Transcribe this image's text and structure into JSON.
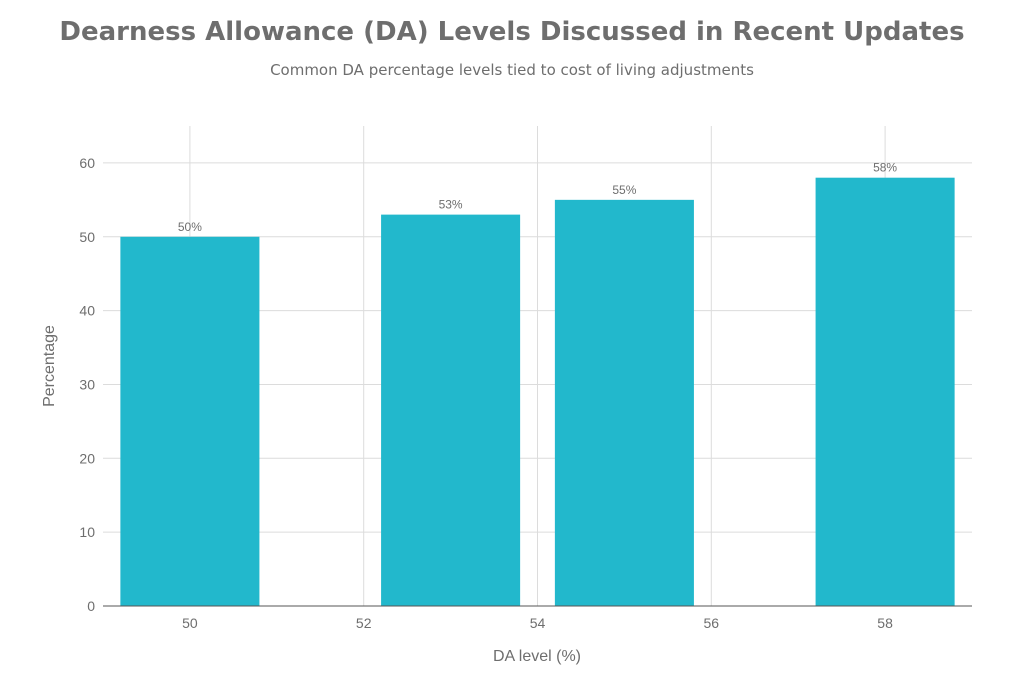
{
  "chart_data": {
    "type": "bar",
    "title": "Dearness Allowance (DA) Levels Discussed in Recent Updates",
    "subtitle": "Common DA percentage levels tied to cost of living adjustments",
    "xlabel": "DA level (%)",
    "ylabel": "Percentage",
    "x": [
      50,
      53,
      55,
      58
    ],
    "values": [
      50,
      53,
      55,
      58
    ],
    "data_labels": [
      "50%",
      "53%",
      "55%",
      "58%"
    ],
    "xlim": [
      49,
      59
    ],
    "ylim": [
      0,
      65
    ],
    "x_ticks": [
      50,
      52,
      54,
      56,
      58
    ],
    "y_ticks": [
      0,
      10,
      20,
      30,
      40,
      50,
      60
    ],
    "bar_width": 1.6,
    "grid": true,
    "bar_color": "#22b8cc"
  }
}
